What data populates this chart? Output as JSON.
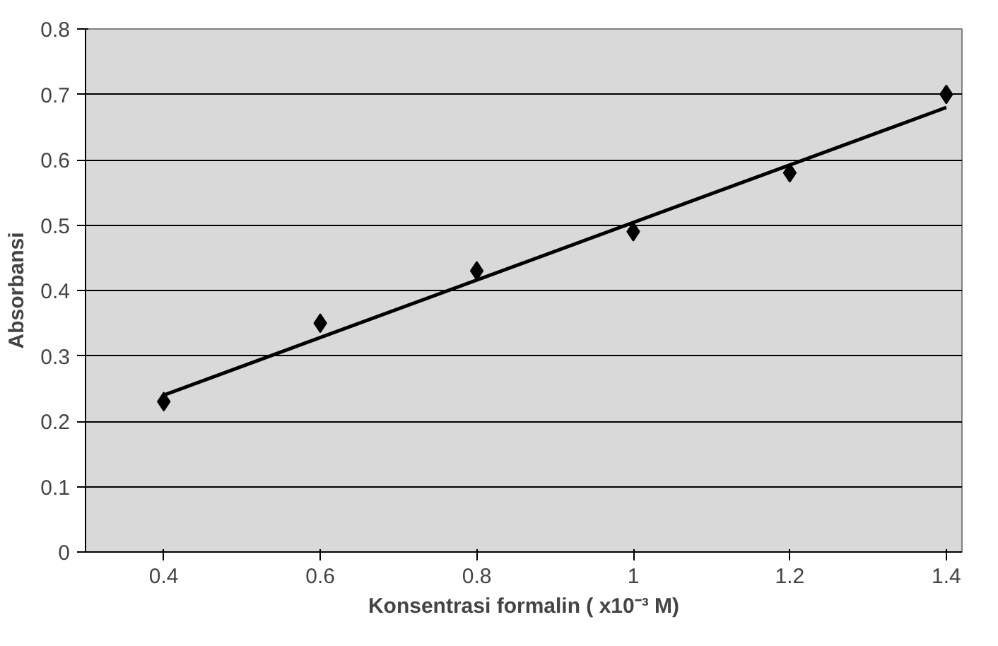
{
  "chart_data": {
    "type": "scatter",
    "xlabel": "Konsentrasi formalin ( x10⁻³ M)",
    "ylabel": "Absorbansi",
    "marker": "diamond",
    "grid": "y",
    "x": [
      0.4,
      0.6,
      0.8,
      1.0,
      1.2,
      1.4
    ],
    "series": [
      {
        "color": "#000000",
        "values": [
          0.23,
          0.35,
          0.43,
          0.49,
          0.58,
          0.7
        ]
      },
      {
        "type": "line",
        "marker": "none",
        "color": "#000000",
        "x": [
          0.4,
          1.4
        ],
        "values": [
          0.24,
          0.68
        ]
      }
    ],
    "xlim": [
      0.3,
      1.42
    ],
    "xticks": [
      0.4,
      0.6,
      0.8,
      {
        "value": 1.0,
        "label": "1"
      },
      1.2,
      1.4
    ],
    "ylim": [
      0,
      0.8
    ],
    "yticks": [
      0,
      0.1,
      0.2,
      0.3,
      0.4,
      0.5,
      0.6,
      0.7,
      0.8
    ]
  }
}
